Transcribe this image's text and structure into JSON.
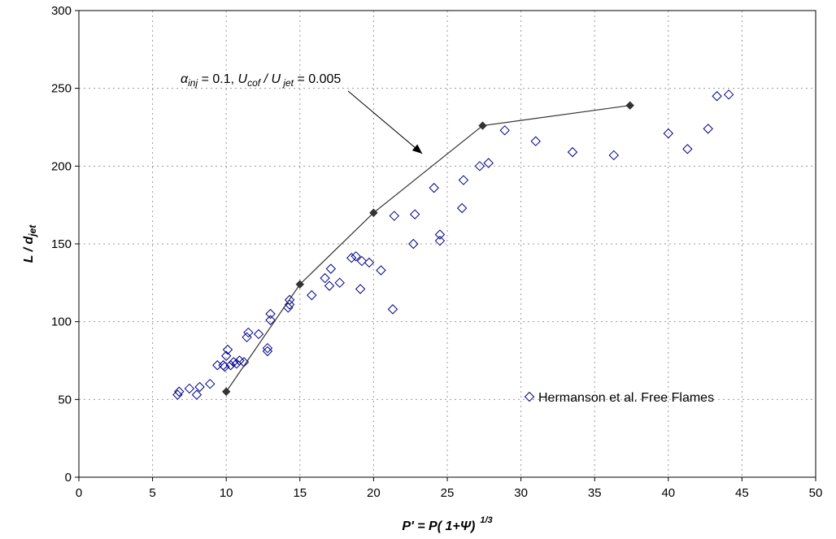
{
  "chart_data": {
    "type": "scatter",
    "xlabel": {
      "main": "P' = P( 1+",
      "symbol": "Ψ",
      "close": ")",
      "sup": "1/3"
    },
    "ylabel": {
      "main": "L / d",
      "sub": "jet"
    },
    "xlim": [
      0,
      50
    ],
    "ylim": [
      0,
      300
    ],
    "xticks": [
      0,
      5,
      10,
      15,
      20,
      25,
      30,
      35,
      40,
      45,
      50
    ],
    "yticks": [
      0,
      50,
      100,
      150,
      200,
      250,
      300
    ],
    "grid": true,
    "legend_position": "bottom-right",
    "series": [
      {
        "name": "Hermanson et al. Free Flames",
        "kind": "scatter",
        "marker": "open-diamond",
        "color": "#00008B",
        "points": [
          [
            6.7,
            53
          ],
          [
            6.8,
            55
          ],
          [
            7.5,
            57
          ],
          [
            8,
            53
          ],
          [
            8.2,
            58
          ],
          [
            8.9,
            60
          ],
          [
            9.4,
            72
          ],
          [
            9.8,
            72
          ],
          [
            9.9,
            71
          ],
          [
            10,
            78
          ],
          [
            10.1,
            82
          ],
          [
            10.3,
            72
          ],
          [
            10.5,
            74
          ],
          [
            10.7,
            73
          ],
          [
            10.9,
            75
          ],
          [
            11.2,
            74
          ],
          [
            11.4,
            90
          ],
          [
            11.5,
            93
          ],
          [
            12.2,
            92
          ],
          [
            12.8,
            81
          ],
          [
            12.8,
            83
          ],
          [
            13,
            105
          ],
          [
            13,
            101
          ],
          [
            14.2,
            109
          ],
          [
            14.3,
            111
          ],
          [
            14.3,
            114
          ],
          [
            15.8,
            117
          ],
          [
            16.7,
            128
          ],
          [
            17,
            123
          ],
          [
            17.1,
            134
          ],
          [
            17.7,
            125
          ],
          [
            18.5,
            141
          ],
          [
            18.8,
            142
          ],
          [
            19.1,
            121
          ],
          [
            19.2,
            139
          ],
          [
            19.7,
            138
          ],
          [
            20.5,
            133
          ],
          [
            21.3,
            108
          ],
          [
            21.4,
            168
          ],
          [
            22.7,
            150
          ],
          [
            22.8,
            169
          ],
          [
            24.1,
            186
          ],
          [
            24.5,
            152
          ],
          [
            24.5,
            156
          ],
          [
            26,
            173
          ],
          [
            26.1,
            191
          ],
          [
            27.2,
            200
          ],
          [
            27.8,
            202
          ],
          [
            28.9,
            223
          ],
          [
            31,
            216
          ],
          [
            33.5,
            209
          ],
          [
            36.3,
            207
          ],
          [
            40,
            221
          ],
          [
            41.3,
            211
          ],
          [
            42.7,
            224
          ],
          [
            43.3,
            245
          ],
          [
            44.1,
            246
          ]
        ]
      },
      {
        "name": "",
        "kind": "line",
        "marker": "filled-diamond",
        "color": "#333333",
        "points": [
          [
            10,
            55
          ],
          [
            15,
            124
          ],
          [
            20,
            170
          ],
          [
            27.4,
            226
          ],
          [
            37.4,
            239
          ]
        ]
      }
    ],
    "annotation": {
      "alpha": "α",
      "alpha_sub": "inj",
      "eq1": " = 0.1, ",
      "u1": "U",
      "u1_sub": "cof",
      "slash": " / ",
      "u2": "U",
      "u2_sub": " jet",
      "eq2": " = 0.005",
      "arrow_target": [
        23.3,
        208
      ]
    }
  }
}
